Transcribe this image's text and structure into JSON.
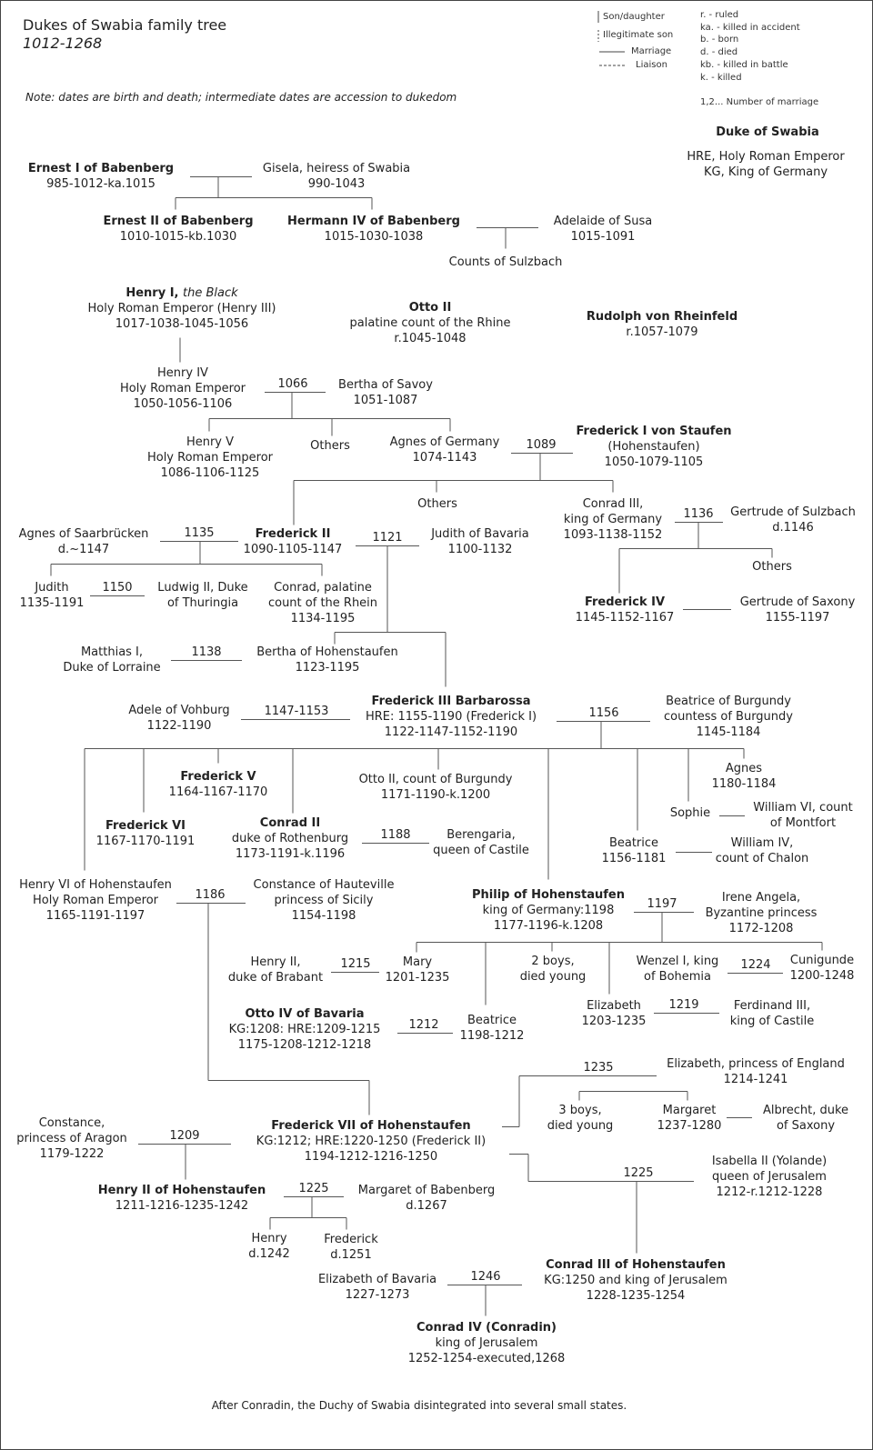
{
  "header": {
    "title": "Dukes of Swabia family tree",
    "subtitle": "1012-1268",
    "note": "Note: dates are birth and death; intermediate dates are accession to dukedom"
  },
  "legend": {
    "line_types": [
      {
        "label": "Son/daughter",
        "style": "vertical-solid"
      },
      {
        "label": "Illegitimate son",
        "style": "vertical-dashed"
      },
      {
        "label": "Marriage",
        "style": "horizontal-solid"
      },
      {
        "label": "Liaison",
        "style": "horizontal-dashed"
      }
    ],
    "abbreviations": [
      "r. - ruled",
      "ka. - killed in accident",
      "b. - born",
      "d. - died",
      "kb. - killed in battle",
      "k. - killed"
    ],
    "marriage_number_note": "1,2... Number of marriage"
  },
  "key": {
    "duke_label": "Duke of Swabia",
    "hre": "HRE, Holy Roman Emperor",
    "kg": "KG, King of Germany"
  },
  "colors": {
    "line": "#555555",
    "text": "#222222"
  },
  "people": [
    {
      "name": "Ernest I of Babenberg",
      "duke": true,
      "details": [
        "985-1012-ka.1015"
      ]
    },
    {
      "name": "Gisela, heiress of Swabia",
      "details": [
        "990-1043"
      ]
    },
    {
      "name": "Ernest II of Babenberg",
      "duke": true,
      "details": [
        "1010-1015-kb.1030"
      ]
    },
    {
      "name": "Hermann IV of Babenberg",
      "duke": true,
      "details": [
        "1015-1030-1038"
      ]
    },
    {
      "name": "Adelaide of Susa",
      "details": [
        "1015-1091"
      ]
    },
    {
      "name": "Counts of Sulzbach",
      "details": []
    },
    {
      "name": "Henry I",
      "em": "the Black",
      "duke": true,
      "details": [
        "Holy Roman Emperor (Henry III)",
        "1017-1038-1045-1056"
      ]
    },
    {
      "name": "Otto II",
      "duke": true,
      "details": [
        "palatine count of the Rhine",
        "r.1045-1048"
      ]
    },
    {
      "name": "Rudolph von Rheinfeld",
      "duke": true,
      "details": [
        "r.1057-1079"
      ]
    },
    {
      "name": "Henry IV",
      "details": [
        "Holy Roman Emperor",
        "1050-1056-1106"
      ]
    },
    {
      "name": "Bertha of Savoy",
      "details": [
        "1051-1087"
      ]
    },
    {
      "name": "Henry V",
      "details": [
        "Holy Roman Emperor",
        "1086-1106-1125"
      ]
    },
    {
      "name": "Others",
      "details": []
    },
    {
      "name": "Agnes of Germany",
      "details": [
        "1074-1143"
      ]
    },
    {
      "name": "Frederick I von Staufen",
      "duke": true,
      "details": [
        "(Hohenstaufen)",
        "1050-1079-1105"
      ]
    },
    {
      "name": "Others",
      "details": []
    },
    {
      "name": "Conrad III,",
      "details": [
        "king of Germany",
        "1093-1138-1152"
      ]
    },
    {
      "name": "Gertrude of Sulzbach",
      "details": [
        "d.1146"
      ]
    },
    {
      "name": "Agnes of Saarbrücken",
      "details": [
        "d.~1147"
      ]
    },
    {
      "name": "Frederick II",
      "duke": true,
      "details": [
        "1090-1105-1147"
      ]
    },
    {
      "name": "Judith of Bavaria",
      "details": [
        "1100-1132"
      ]
    },
    {
      "name": "Judith",
      "details": [
        "1135-1191"
      ]
    },
    {
      "name": "Ludwig II, Duke",
      "details": [
        "of Thuringia"
      ]
    },
    {
      "name": "Conrad, palatine",
      "details": [
        "count of the Rhein",
        "1134-1195"
      ]
    },
    {
      "name": "Others",
      "details": []
    },
    {
      "name": "Frederick IV",
      "duke": true,
      "details": [
        "1145-1152-1167"
      ]
    },
    {
      "name": "Gertrude of Saxony",
      "details": [
        "1155-1197"
      ]
    },
    {
      "name": "Matthias I,",
      "details": [
        "Duke of Lorraine"
      ]
    },
    {
      "name": "Bertha of Hohenstaufen",
      "details": [
        "1123-1195"
      ]
    },
    {
      "name": "Adele of Vohburg",
      "details": [
        "1122-1190"
      ]
    },
    {
      "name": "Frederick III Barbarossa",
      "duke": true,
      "details": [
        "HRE: 1155-1190 (Frederick I)",
        "1122-1147-1152-1190"
      ]
    },
    {
      "name": "Beatrice of Burgundy",
      "details": [
        "countess of Burgundy",
        "1145-1184"
      ]
    },
    {
      "name": "Frederick V",
      "duke": true,
      "details": [
        "1164-1167-1170"
      ]
    },
    {
      "name": "Otto II, count of Burgundy",
      "details": [
        "1171-1190-k.1200"
      ]
    },
    {
      "name": "Agnes",
      "details": [
        "1180-1184"
      ]
    },
    {
      "name": "Sophie",
      "details": []
    },
    {
      "name": "William VI, count",
      "details": [
        "of Montfort"
      ]
    },
    {
      "name": "Frederick VI",
      "duke": true,
      "details": [
        "1167-1170-1191"
      ]
    },
    {
      "name": "Conrad II",
      "duke": true,
      "details": [
        "duke of Rothenburg",
        "1173-1191-k.1196"
      ]
    },
    {
      "name": "Berengaria,",
      "details": [
        "queen of Castile"
      ]
    },
    {
      "name": "Beatrice",
      "details": [
        "1156-1181"
      ]
    },
    {
      "name": "William IV,",
      "details": [
        "count of Chalon"
      ]
    },
    {
      "name": "Henry VI of Hohenstaufen",
      "details": [
        "Holy Roman Emperor",
        "1165-1191-1197"
      ]
    },
    {
      "name": "Constance of Hauteville",
      "details": [
        "princess of Sicily",
        "1154-1198"
      ]
    },
    {
      "name": "Philip of Hohenstaufen",
      "duke": true,
      "details": [
        "king of Germany:1198",
        "1177-1196-k.1208"
      ]
    },
    {
      "name": "Irene Angela,",
      "details": [
        "Byzantine princess",
        "1172-1208"
      ]
    },
    {
      "name": "Henry II,",
      "details": [
        "duke of Brabant"
      ]
    },
    {
      "name": "Mary",
      "details": [
        "1201-1235"
      ]
    },
    {
      "name": "2 boys,",
      "details": [
        "died young"
      ]
    },
    {
      "name": "Wenzel I, king",
      "details": [
        "of Bohemia"
      ]
    },
    {
      "name": "Cunigunde",
      "details": [
        "1200-1248"
      ]
    },
    {
      "name": "Elizabeth",
      "details": [
        "1203-1235"
      ]
    },
    {
      "name": "Ferdinand III,",
      "details": [
        "king of Castile"
      ]
    },
    {
      "name": "Otto IV of Bavaria",
      "duke": true,
      "details": [
        "KG:1208: HRE:1209-1215",
        "1175-1208-1212-1218"
      ]
    },
    {
      "name": "Beatrice",
      "details": [
        "1198-1212"
      ]
    },
    {
      "name": "Elizabeth, princess of England",
      "details": [
        "1214-1241"
      ]
    },
    {
      "name": "3 boys,",
      "details": [
        "died young"
      ]
    },
    {
      "name": "Margaret",
      "details": [
        "1237-1280"
      ]
    },
    {
      "name": "Albrecht, duke",
      "details": [
        "of Saxony"
      ]
    },
    {
      "name": "Constance,",
      "details": [
        "princess of Aragon",
        "1179-1222"
      ]
    },
    {
      "name": "Frederick VII of Hohenstaufen",
      "duke": true,
      "details": [
        "KG:1212; HRE:1220-1250 (Frederick II)",
        "1194-1212-1216-1250"
      ]
    },
    {
      "name": "Isabella II (Yolande)",
      "details": [
        "queen of Jerusalem",
        "1212-r.1212-1228"
      ]
    },
    {
      "name": "Henry II of Hohenstaufen",
      "duke": true,
      "details": [
        "1211-1216-1235-1242"
      ]
    },
    {
      "name": "Margaret of Babenberg",
      "details": [
        "d.1267"
      ]
    },
    {
      "name": "Henry",
      "details": [
        "d.1242"
      ]
    },
    {
      "name": "Frederick",
      "details": [
        "d.1251"
      ]
    },
    {
      "name": "Conrad III of Hohenstaufen",
      "duke": true,
      "details": [
        "KG:1250 and king of Jerusalem",
        "1228-1235-1254"
      ]
    },
    {
      "name": "Elizabeth of Bavaria",
      "details": [
        "1227-1273"
      ]
    },
    {
      "name": "Conrad IV (Conradin)",
      "duke": true,
      "details": [
        "king of Jerusalem",
        "1252-1254-executed,1268"
      ]
    }
  ],
  "marriages": [
    "1066",
    "1089",
    "1136",
    "1135",
    "1121",
    "1150",
    "1138",
    "1147-1153",
    "1156",
    "1188",
    "1186",
    "1197",
    "1215",
    "1224",
    "1219",
    "1212",
    "1235",
    "1209",
    "1225",
    "1225",
    "1246"
  ],
  "footer": "After Conradin, the Duchy of Swabia disintegrated into several small states."
}
